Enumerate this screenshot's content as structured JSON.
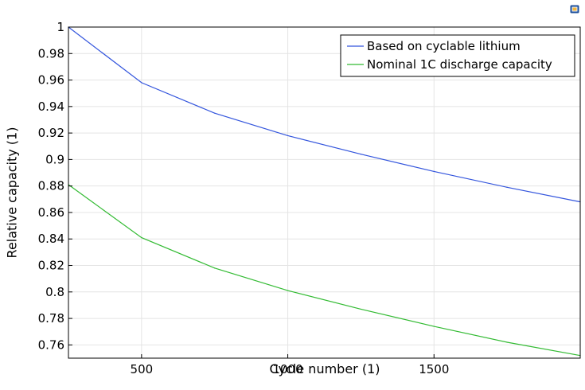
{
  "chart_data": {
    "type": "line",
    "xlabel": "Cycle number (1)",
    "ylabel": "Relative capacity (1)",
    "xlim": [
      250,
      2000
    ],
    "ylim": [
      0.75,
      1.0
    ],
    "x_ticks": [
      500,
      1000,
      1500
    ],
    "y_ticks": [
      1,
      0.98,
      0.96,
      0.94,
      0.92,
      0.9,
      0.88,
      0.86,
      0.84,
      0.82,
      0.8,
      0.78,
      0.76
    ],
    "grid": true,
    "legend_position": "top-right",
    "series": [
      {
        "name": "Based on cyclable lithium",
        "color": "#3355dd",
        "x": [
          250,
          500,
          750,
          1000,
          1250,
          1500,
          1750,
          2000
        ],
        "values": [
          1.0,
          0.958,
          0.935,
          0.918,
          0.904,
          0.891,
          0.879,
          0.868
        ]
      },
      {
        "name": "Nominal 1C discharge capacity",
        "color": "#33bb33",
        "x": [
          250,
          500,
          750,
          1000,
          1250,
          1500,
          1750,
          2000
        ],
        "values": [
          0.881,
          0.841,
          0.818,
          0.801,
          0.787,
          0.774,
          0.762,
          0.752
        ]
      }
    ]
  },
  "toolbar": {
    "corner_icon": "window-icon"
  }
}
